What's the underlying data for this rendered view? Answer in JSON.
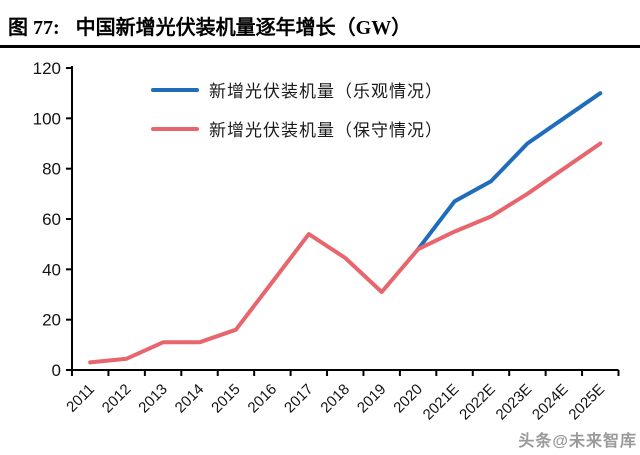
{
  "header": {
    "figure_label": "图 77:",
    "title": "中国新增光伏装机量逐年增长（GW）"
  },
  "watermark": "头条@未来智库",
  "colors": {
    "optimistic_blue": "#1f6cbb",
    "conservative_red": "#e8656d",
    "axis_black": "#000000",
    "tick_label": "#141414",
    "watermark_gray": "#9a9a9a"
  },
  "chart_data": {
    "type": "line",
    "title": "中国新增光伏装机量逐年增长（GW）",
    "unit": "GW",
    "categories": [
      "2011",
      "2012",
      "2013",
      "2014",
      "2015",
      "2016",
      "2017",
      "2018",
      "2019",
      "2020",
      "2021E",
      "2022E",
      "2023E",
      "2024E",
      "2025E"
    ],
    "series": [
      {
        "name": "新增光伏装机量（乐观情况）",
        "color": "#1f6cbb",
        "values": [
          null,
          null,
          null,
          null,
          null,
          null,
          null,
          null,
          null,
          48,
          67,
          75,
          90,
          100,
          110
        ]
      },
      {
        "name": "新增光伏装机量（保守情况）",
        "color": "#e8656d",
        "values": [
          3,
          4.5,
          11,
          11,
          16,
          35,
          54,
          44.5,
          31,
          48,
          55,
          61,
          70,
          80,
          90
        ]
      }
    ],
    "ylim": [
      0,
      120
    ],
    "ytick_step": 20,
    "grid": false,
    "legend_position": "top-inside",
    "x_label_rotation": -45
  }
}
